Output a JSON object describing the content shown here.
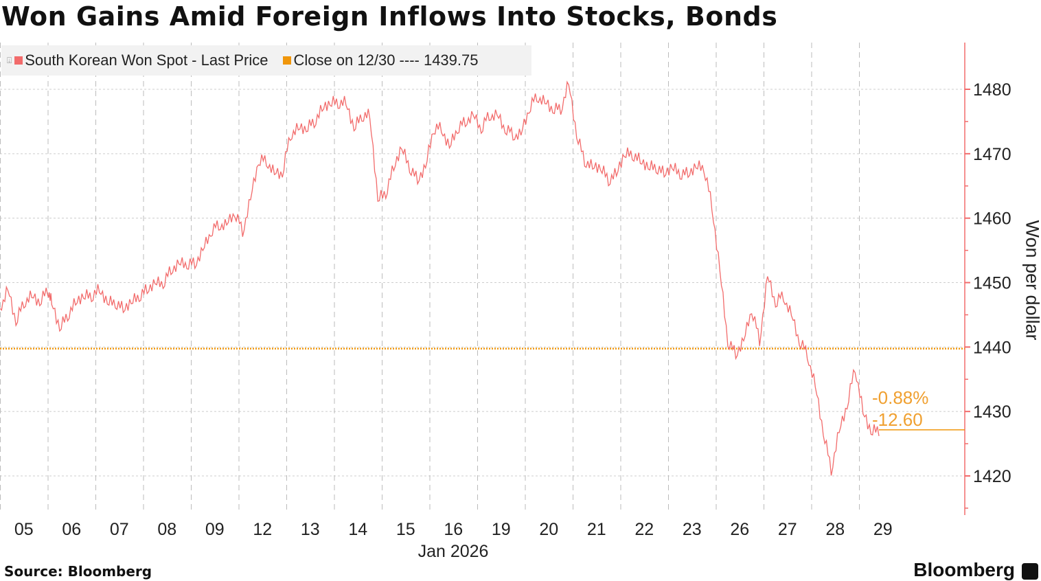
{
  "title": "Won Gains Amid Foreign Inflows Into Stocks, Bonds",
  "legend": [
    {
      "label": "South Korean Won Spot - Last Price",
      "color": "#f26b6b"
    },
    {
      "label": "Close on 12/30 ---- 1439.75",
      "color": "#f0960a"
    }
  ],
  "annotations": {
    "pct_change": "-0.88%",
    "abs_change": "-12.60"
  },
  "source": "Source: Bloomberg",
  "brand": "Bloomberg",
  "chart_data": {
    "type": "line",
    "xlabel": "Jan 2026",
    "ylabel": "Won per dollar",
    "ylim": [
      1413,
      1486
    ],
    "yticks": [
      1420,
      1430,
      1440,
      1450,
      1460,
      1470,
      1480
    ],
    "grid": true,
    "axis_position": "right",
    "legend_position": "top-left",
    "reference_line": {
      "label": "Close on 12/30",
      "value": 1439.75,
      "color": "#f0960a"
    },
    "last_value": 1427.15,
    "series": [
      {
        "name": "South Korean Won Spot - Last Price",
        "color": "#f26b6b",
        "days": [
          {
            "date": "05",
            "values": [
              1446,
              1449,
              1444,
              1447,
              1448,
              1447,
              1449
            ]
          },
          {
            "date": "06",
            "values": [
              1447,
              1443,
              1445,
              1447,
              1448,
              1448
            ]
          },
          {
            "date": "07",
            "values": [
              1449,
              1447,
              1447,
              1446,
              1447,
              1448
            ]
          },
          {
            "date": "08",
            "values": [
              1449,
              1450,
              1450,
              1452,
              1453,
              1453
            ]
          },
          {
            "date": "09",
            "values": [
              1453,
              1455,
              1458,
              1459,
              1459,
              1461
            ]
          },
          {
            "date": "12",
            "values": [
              1458,
              1463,
              1469,
              1469,
              1467,
              1467
            ]
          },
          {
            "date": "13",
            "values": [
              1473,
              1474,
              1474,
              1475,
              1477,
              1478
            ]
          },
          {
            "date": "14",
            "values": [
              1478,
              1478,
              1474,
              1476,
              1476,
              1463
            ]
          },
          {
            "date": "15",
            "values": [
              1464,
              1468,
              1471,
              1468,
              1466,
              1468
            ]
          },
          {
            "date": "16",
            "values": [
              1474,
              1474,
              1471,
              1474,
              1475,
              1476
            ]
          },
          {
            "date": "19",
            "values": [
              1474,
              1476,
              1476,
              1474,
              1473,
              1473
            ]
          },
          {
            "date": "20",
            "values": [
              1477,
              1479,
              1478,
              1477,
              1477,
              1481
            ]
          },
          {
            "date": "21",
            "values": [
              1473,
              1469,
              1468,
              1468,
              1466,
              1467
            ]
          },
          {
            "date": "22",
            "values": [
              1470,
              1470,
              1469,
              1468,
              1468,
              1467
            ]
          },
          {
            "date": "23",
            "values": [
              1468,
              1467,
              1467,
              1468,
              1468,
              1462
            ]
          },
          {
            "date": "26",
            "values": [
              1452,
              1441,
              1439,
              1441,
              1446,
              1441
            ]
          },
          {
            "date": "27",
            "values": [
              1451,
              1447,
              1448,
              1445,
              1441,
              1439
            ]
          },
          {
            "date": "28",
            "values": [
              1434,
              1427,
              1421,
              1427,
              1431,
              1437
            ]
          },
          {
            "date": "29",
            "values": [
              1430,
              1427,
              1427.15
            ]
          }
        ]
      }
    ]
  }
}
